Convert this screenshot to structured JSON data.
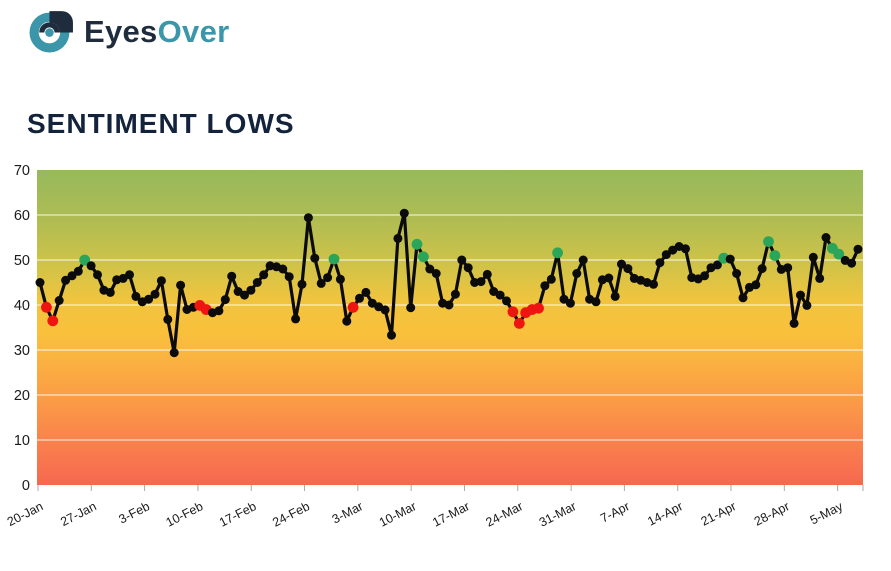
{
  "logo": {
    "brand_primary": "Eyes",
    "brand_secondary": "Over"
  },
  "title": "SENTIMENT LOWS",
  "colors": {
    "brand_navy": "#1f2c3d",
    "brand_teal": "#3a96a8",
    "title_text": "#13233b",
    "line": "#0b0b0b",
    "dot_black": "#0b0b0b",
    "dot_red": "#ee1411",
    "dot_green": "#2aa559",
    "grid": "rgba(255,255,255,0.6)",
    "tick": "#aaaaaa",
    "axis_text": "#1a1a1a",
    "gradient": [
      [
        0.0,
        "#97b95c"
      ],
      [
        0.15,
        "#aebc53"
      ],
      [
        0.3,
        "#cfc348"
      ],
      [
        0.42,
        "#f2c43e"
      ],
      [
        0.52,
        "#f9c03c"
      ],
      [
        0.63,
        "#fbad42"
      ],
      [
        0.75,
        "#fb9847"
      ],
      [
        0.88,
        "#f97e4d"
      ],
      [
        1.0,
        "#f66851"
      ]
    ]
  },
  "chart_data": {
    "type": "line",
    "title": "SENTIMENT LOWS",
    "xlabel": "",
    "ylabel": "",
    "ylim": [
      0,
      70
    ],
    "y_ticks": [
      0,
      10,
      20,
      30,
      40,
      50,
      60,
      70
    ],
    "grid": true,
    "legend": "none",
    "background": "vertical gradient: green (70) through yellow (40) to red (0)",
    "point_color_legend": {
      "k": "black = normal day",
      "r": "red = low sentiment day",
      "g": "green = high sentiment day"
    },
    "x_tick_labels": [
      "20-Jan",
      "27-Jan",
      "3-Feb",
      "10-Feb",
      "17-Feb",
      "24-Feb",
      "3-Mar",
      "10-Mar",
      "17-Mar",
      "24-Mar",
      "31-Mar",
      "7-Apr",
      "14-Apr",
      "21-Apr",
      "28-Apr",
      "5-May"
    ],
    "points": [
      [
        45,
        "k"
      ],
      [
        39.5,
        "r"
      ],
      [
        36.5,
        "r"
      ],
      [
        41,
        "k"
      ],
      [
        45.5,
        "k"
      ],
      [
        46.5,
        "k"
      ],
      [
        47.5,
        "k"
      ],
      [
        50,
        "g"
      ],
      [
        48.7,
        "k"
      ],
      [
        46.7,
        "k"
      ],
      [
        43.3,
        "k"
      ],
      [
        42.8,
        "k"
      ],
      [
        45.6,
        "k"
      ],
      [
        45.9,
        "k"
      ],
      [
        46.7,
        "k"
      ],
      [
        41.9,
        "k"
      ],
      [
        40.7,
        "k"
      ],
      [
        41.3,
        "k"
      ],
      [
        42.4,
        "k"
      ],
      [
        45.4,
        "k"
      ],
      [
        36.8,
        "k"
      ],
      [
        29.4,
        "k"
      ],
      [
        44.4,
        "k"
      ],
      [
        39,
        "k"
      ],
      [
        39.5,
        "k"
      ],
      [
        39.9,
        "r"
      ],
      [
        39,
        "r"
      ],
      [
        38.3,
        "k"
      ],
      [
        38.7,
        "k"
      ],
      [
        41.2,
        "k"
      ],
      [
        46.4,
        "k"
      ],
      [
        43,
        "k"
      ],
      [
        42.2,
        "k"
      ],
      [
        43.3,
        "k"
      ],
      [
        45,
        "k"
      ],
      [
        46.7,
        "k"
      ],
      [
        48.7,
        "k"
      ],
      [
        48.5,
        "k"
      ],
      [
        48,
        "k"
      ],
      [
        46.3,
        "k"
      ],
      [
        36.9,
        "k"
      ],
      [
        44.6,
        "k"
      ],
      [
        59.4,
        "k"
      ],
      [
        50.4,
        "k"
      ],
      [
        44.8,
        "k"
      ],
      [
        46.1,
        "k"
      ],
      [
        50.2,
        "g"
      ],
      [
        45.7,
        "k"
      ],
      [
        36.4,
        "k"
      ],
      [
        39.5,
        "r"
      ],
      [
        41.5,
        "k"
      ],
      [
        42.8,
        "k"
      ],
      [
        40.4,
        "k"
      ],
      [
        39.6,
        "k"
      ],
      [
        38.9,
        "k"
      ],
      [
        33.3,
        "k"
      ],
      [
        54.8,
        "k"
      ],
      [
        60.4,
        "k"
      ],
      [
        39.4,
        "k"
      ],
      [
        53.5,
        "g"
      ],
      [
        50.7,
        "g"
      ],
      [
        48,
        "k"
      ],
      [
        47,
        "k"
      ],
      [
        40.4,
        "k"
      ],
      [
        40,
        "k"
      ],
      [
        42.4,
        "k"
      ],
      [
        50,
        "k"
      ],
      [
        48.3,
        "k"
      ],
      [
        45,
        "k"
      ],
      [
        45.2,
        "k"
      ],
      [
        46.8,
        "k"
      ],
      [
        43,
        "k"
      ],
      [
        42.2,
        "k"
      ],
      [
        40.9,
        "k"
      ],
      [
        38.5,
        "r"
      ],
      [
        35.9,
        "r"
      ],
      [
        38.3,
        "r"
      ],
      [
        39,
        "r"
      ],
      [
        39.3,
        "r"
      ],
      [
        44.3,
        "k"
      ],
      [
        45.7,
        "k"
      ],
      [
        51.6,
        "g"
      ],
      [
        41.3,
        "k"
      ],
      [
        40.4,
        "k"
      ],
      [
        47,
        "k"
      ],
      [
        50,
        "k"
      ],
      [
        41.3,
        "k"
      ],
      [
        40.7,
        "k"
      ],
      [
        45.6,
        "k"
      ],
      [
        46,
        "k"
      ],
      [
        41.9,
        "k"
      ],
      [
        49.1,
        "k"
      ],
      [
        48.1,
        "k"
      ],
      [
        45.9,
        "k"
      ],
      [
        45.5,
        "k"
      ],
      [
        45,
        "k"
      ],
      [
        44.6,
        "k"
      ],
      [
        49.4,
        "k"
      ],
      [
        51.2,
        "k"
      ],
      [
        52.2,
        "k"
      ],
      [
        53,
        "k"
      ],
      [
        52.5,
        "k"
      ],
      [
        46.1,
        "k"
      ],
      [
        45.8,
        "k"
      ],
      [
        46.5,
        "k"
      ],
      [
        48.3,
        "k"
      ],
      [
        48.9,
        "k"
      ],
      [
        50.4,
        "g"
      ],
      [
        50.2,
        "k"
      ],
      [
        47,
        "k"
      ],
      [
        41.6,
        "k"
      ],
      [
        43.9,
        "k"
      ],
      [
        44.5,
        "k"
      ],
      [
        48.1,
        "k"
      ],
      [
        54.1,
        "g"
      ],
      [
        51,
        "g"
      ],
      [
        47.9,
        "k"
      ],
      [
        48.3,
        "k"
      ],
      [
        35.9,
        "k"
      ],
      [
        42.2,
        "k"
      ],
      [
        39.9,
        "k"
      ],
      [
        50.6,
        "k"
      ],
      [
        45.9,
        "k"
      ],
      [
        55,
        "k"
      ],
      [
        52.6,
        "g"
      ],
      [
        51.3,
        "g"
      ],
      [
        49.9,
        "k"
      ],
      [
        49.3,
        "k"
      ],
      [
        52.4,
        "k"
      ]
    ]
  }
}
